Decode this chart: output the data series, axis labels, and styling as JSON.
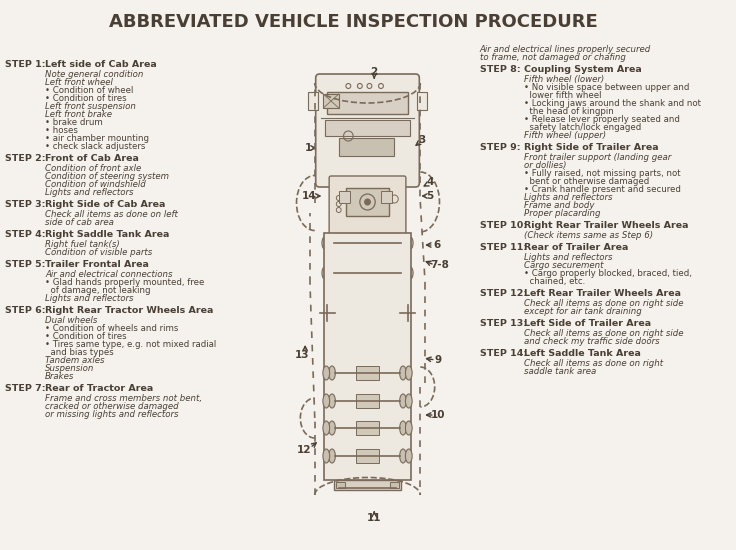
{
  "title": "ABBREVIATED VEHICLE INSPECTION PROCEDURE",
  "bg_color": "#f5f2ed",
  "text_color": "#4a3f35",
  "line_color": "#7a6a5a",
  "left_steps": [
    {
      "step": "STEP 1:",
      "area": "Left side of Cab Area",
      "details": [
        "Note general condition",
        "Left front wheel",
        "• Condition of wheel",
        "• Condition of tires",
        "Left front suspension",
        "Left front brake",
        "• brake drum",
        "• hoses",
        "• air chamber mounting",
        "• check slack adjusters"
      ]
    },
    {
      "step": "STEP 2:",
      "area": "Front of Cab Area",
      "details": [
        "Condition of front axle",
        "Condition of steering system",
        "Condition of windshield",
        "Lights and reflectors"
      ]
    },
    {
      "step": "STEP 3:",
      "area": "Right Side of Cab Area",
      "details": [
        "Check all items as done on left",
        "side of cab area"
      ]
    },
    {
      "step": "STEP 4:",
      "area": "Right Saddle Tank Area",
      "details": [
        "Right fuel tank(s)",
        "Condition of visible parts"
      ]
    },
    {
      "step": "STEP 5:",
      "area": "Trailer Frontal Area",
      "details": [
        "Air and electrical connections",
        "• Glad hands properly mounted, free",
        "  of damage, not leaking",
        "Lights and reflectors"
      ]
    },
    {
      "step": "STEP 6:",
      "area": "Right Rear Tractor Wheels Area",
      "details": [
        "Dual wheels",
        "• Condition of wheels and rims",
        "• Condition of tires",
        "• Tires same type, e.g. not mixed radial",
        "  and bias types",
        "Tandem axles",
        "Suspension",
        "Brakes"
      ]
    },
    {
      "step": "STEP 7:",
      "area": "Rear of Tractor Area",
      "details": [
        "Frame and cross members not bent,",
        "cracked or otherwise damaged",
        "or missing lights and reflectors"
      ]
    }
  ],
  "right_steps": [
    {
      "step": "STEP 8:",
      "area": "Coupling System Area",
      "details": [
        "Fifth wheel (lower)",
        "• No visible space between upper and",
        "  lower fifth wheel",
        "• Locking jaws around the shank and not",
        "  the head of kingpin",
        "• Release lever properly seated and",
        "  safety latch/lock engaged",
        "Fifth wheel (upper)"
      ],
      "top_note": [
        "Air and electrical lines properly secured",
        "to frame, not damaged or chafing"
      ]
    },
    {
      "step": "STEP 9:",
      "area": "Right Side of Trailer Area",
      "details": [
        "Front trailer support (landing gear",
        "or dollies)",
        "• Fully raised, not missing parts, not",
        "  bent or otherwise damaged",
        "• Crank handle present and secured",
        "Lights and reflectors",
        "Frame and body",
        "Proper placarding"
      ]
    },
    {
      "step": "STEP 10:",
      "area": "Right Rear Trailer Wheels Area",
      "details": [
        "(Check items same as Step 6)"
      ]
    },
    {
      "step": "STEP 11:",
      "area": "Rear of Trailer Area",
      "details": [
        "Lights and reflectors",
        "Cargo securement",
        "• Cargo properly blocked, braced, tied,",
        "  chained, etc."
      ]
    },
    {
      "step": "STEP 12:",
      "area": "Left Rear Trailer Wheels Area",
      "details": [
        "Check all items as done on right side",
        "except for air tank draining"
      ]
    },
    {
      "step": "STEP 13:",
      "area": "Left Side of Trailer Area",
      "details": [
        "Check all items as done on right side",
        "and check my traffic side doors"
      ]
    },
    {
      "step": "STEP 14:",
      "area": "Left Saddle Tank Area",
      "details": [
        "Check all items as done on right",
        "saddle tank area"
      ]
    }
  ]
}
